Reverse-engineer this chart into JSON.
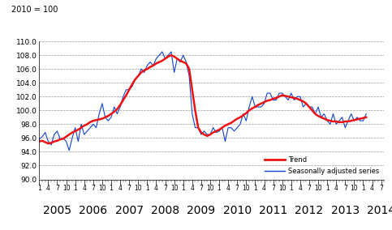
{
  "title": "2010 = 100",
  "ylim": [
    90.0,
    110.0
  ],
  "yticks": [
    90.0,
    92.0,
    94.0,
    96.0,
    98.0,
    100.0,
    102.0,
    104.0,
    106.0,
    108.0,
    110.0
  ],
  "trend_color": "#EE1111",
  "seasonal_color": "#1144CC",
  "trend_linewidth": 1.8,
  "seasonal_linewidth": 0.8,
  "legend_trend": "Trend",
  "legend_seasonal": "Seasonally adjusted series",
  "background_color": "#FFFFFF",
  "grid_color": "#999999",
  "grid_style": "--",
  "trend": [
    95.5,
    95.6,
    95.4,
    95.2,
    95.3,
    95.5,
    95.6,
    95.8,
    95.9,
    96.2,
    96.5,
    96.8,
    97.0,
    97.2,
    97.5,
    97.8,
    98.0,
    98.3,
    98.5,
    98.6,
    98.7,
    98.8,
    99.0,
    99.2,
    99.5,
    99.8,
    100.2,
    100.8,
    101.5,
    102.2,
    103.0,
    103.8,
    104.5,
    105.0,
    105.5,
    105.8,
    106.0,
    106.3,
    106.5,
    106.8,
    107.0,
    107.2,
    107.5,
    107.8,
    108.0,
    107.8,
    107.5,
    107.2,
    107.0,
    106.8,
    106.0,
    103.0,
    100.0,
    97.5,
    96.8,
    96.5,
    96.3,
    96.5,
    96.8,
    97.0,
    97.2,
    97.5,
    97.8,
    98.0,
    98.2,
    98.5,
    98.8,
    99.0,
    99.3,
    99.6,
    100.0,
    100.3,
    100.5,
    100.8,
    101.0,
    101.2,
    101.4,
    101.5,
    101.7,
    101.8,
    102.0,
    102.2,
    102.1,
    102.0,
    101.9,
    101.8,
    101.7,
    101.5,
    101.3,
    101.0,
    100.5,
    100.0,
    99.5,
    99.2,
    99.0,
    98.8,
    98.6,
    98.5,
    98.4,
    98.4,
    98.3,
    98.3,
    98.4,
    98.4,
    98.5,
    98.6,
    98.7,
    98.8,
    98.9,
    99.0
  ],
  "seasonal": [
    95.8,
    96.2,
    96.8,
    95.5,
    95.0,
    96.5,
    97.0,
    95.8,
    96.0,
    95.5,
    94.2,
    96.0,
    97.5,
    95.5,
    98.0,
    96.5,
    97.0,
    97.5,
    98.0,
    97.5,
    99.5,
    101.0,
    99.0,
    98.5,
    99.0,
    100.5,
    99.5,
    100.5,
    102.0,
    103.0,
    103.0,
    103.5,
    104.5,
    105.0,
    106.0,
    105.5,
    106.5,
    107.0,
    106.5,
    107.5,
    108.0,
    108.5,
    107.5,
    108.0,
    108.5,
    105.5,
    107.5,
    107.0,
    108.0,
    107.0,
    105.0,
    99.5,
    97.5,
    97.5,
    96.5,
    97.0,
    96.5,
    96.5,
    97.5,
    96.8,
    97.0,
    97.5,
    95.5,
    97.5,
    97.5,
    97.0,
    97.5,
    98.0,
    99.5,
    98.5,
    100.5,
    102.0,
    100.5,
    100.5,
    100.5,
    101.0,
    102.5,
    102.5,
    101.5,
    101.5,
    102.5,
    102.5,
    102.0,
    101.5,
    102.5,
    101.5,
    102.0,
    102.0,
    100.5,
    101.0,
    100.5,
    100.5,
    99.5,
    100.5,
    99.0,
    99.5,
    98.5,
    98.0,
    99.5,
    98.0,
    98.5,
    99.0,
    97.5,
    98.5,
    99.5,
    98.5,
    99.0,
    98.5,
    98.5,
    99.5
  ],
  "xstart": 2005.0,
  "xend_month": 7,
  "xend_year": 2014,
  "years": [
    2005,
    2006,
    2007,
    2008,
    2009,
    2010,
    2011,
    2012,
    2013,
    2014
  ],
  "month_ticks": [
    1,
    4,
    7,
    10
  ]
}
